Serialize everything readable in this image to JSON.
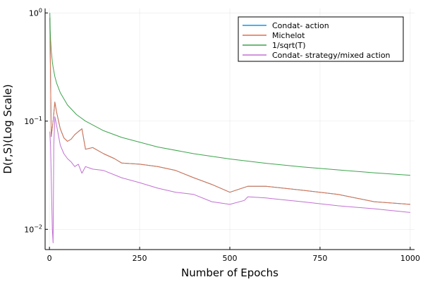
{
  "chart_data": {
    "type": "line",
    "title": "",
    "xlabel": "Number of Epochs",
    "ylabel": "D(r,S)(Log Scale)",
    "xlim": [
      -12,
      1012
    ],
    "ylim": [
      0.0065,
      1.1
    ],
    "yscale": "log",
    "grid": true,
    "legend_position": "top-right",
    "x_ticks": [
      {
        "value": 0,
        "label": "0"
      },
      {
        "value": 250,
        "label": "250"
      },
      {
        "value": 500,
        "label": "500"
      },
      {
        "value": 750,
        "label": "750"
      },
      {
        "value": 1000,
        "label": "1000"
      }
    ],
    "y_ticks": [
      {
        "value": 0.01,
        "base": "10",
        "exp": "−2"
      },
      {
        "value": 0.1,
        "base": "10",
        "exp": "−1"
      },
      {
        "value": 1,
        "base": "10",
        "exp": "0"
      }
    ],
    "series": [
      {
        "name": "Condat- action",
        "color": "#009af9",
        "x": [
          1,
          5,
          10,
          15,
          20,
          30,
          40,
          50,
          60,
          70,
          80,
          90,
          100,
          120,
          150,
          180,
          200,
          250,
          300,
          350,
          400,
          450,
          500,
          550,
          600,
          700,
          800,
          900,
          1000
        ],
        "y": [
          0.9,
          0.072,
          0.1,
          0.15,
          0.12,
          0.085,
          0.07,
          0.065,
          0.068,
          0.075,
          0.08,
          0.085,
          0.055,
          0.057,
          0.05,
          0.045,
          0.041,
          0.04,
          0.038,
          0.035,
          0.03,
          0.026,
          0.022,
          0.025,
          0.025,
          0.023,
          0.021,
          0.018,
          0.017
        ]
      },
      {
        "name": "Michelot",
        "color": "#e26f46",
        "x": [
          1,
          5,
          10,
          15,
          20,
          30,
          40,
          50,
          60,
          70,
          80,
          90,
          100,
          120,
          150,
          180,
          200,
          250,
          300,
          350,
          400,
          450,
          500,
          550,
          600,
          700,
          800,
          900,
          1000
        ],
        "y": [
          0.9,
          0.072,
          0.1,
          0.15,
          0.12,
          0.085,
          0.07,
          0.065,
          0.068,
          0.075,
          0.08,
          0.085,
          0.055,
          0.057,
          0.05,
          0.045,
          0.041,
          0.04,
          0.038,
          0.035,
          0.03,
          0.026,
          0.022,
          0.025,
          0.025,
          0.023,
          0.021,
          0.018,
          0.017
        ]
      },
      {
        "name": "1/sqrt(T)",
        "color": "#3da44d",
        "x": [
          1,
          2,
          3,
          5,
          8,
          10,
          15,
          20,
          30,
          50,
          75,
          100,
          150,
          200,
          300,
          400,
          500,
          600,
          700,
          800,
          900,
          1000
        ],
        "y": [
          1.0,
          0.707,
          0.577,
          0.447,
          0.354,
          0.316,
          0.258,
          0.224,
          0.183,
          0.141,
          0.115,
          0.1,
          0.0816,
          0.0707,
          0.0577,
          0.05,
          0.0447,
          0.0408,
          0.0378,
          0.0354,
          0.0333,
          0.0316
        ]
      },
      {
        "name": "Condat- strategy/mixed action",
        "color": "#c271d2",
        "x": [
          1,
          3,
          5,
          8,
          10,
          12,
          15,
          20,
          30,
          40,
          50,
          60,
          70,
          80,
          90,
          100,
          120,
          150,
          200,
          250,
          300,
          350,
          400,
          450,
          500,
          540,
          550,
          600,
          700,
          800,
          900,
          1000
        ],
        "y": [
          0.08,
          0.06,
          0.03,
          0.01,
          0.0075,
          0.06,
          0.11,
          0.09,
          0.06,
          0.05,
          0.045,
          0.042,
          0.038,
          0.04,
          0.033,
          0.038,
          0.036,
          0.035,
          0.03,
          0.027,
          0.024,
          0.022,
          0.021,
          0.018,
          0.017,
          0.0185,
          0.02,
          0.0195,
          0.018,
          0.0165,
          0.0155,
          0.0143
        ]
      }
    ]
  }
}
